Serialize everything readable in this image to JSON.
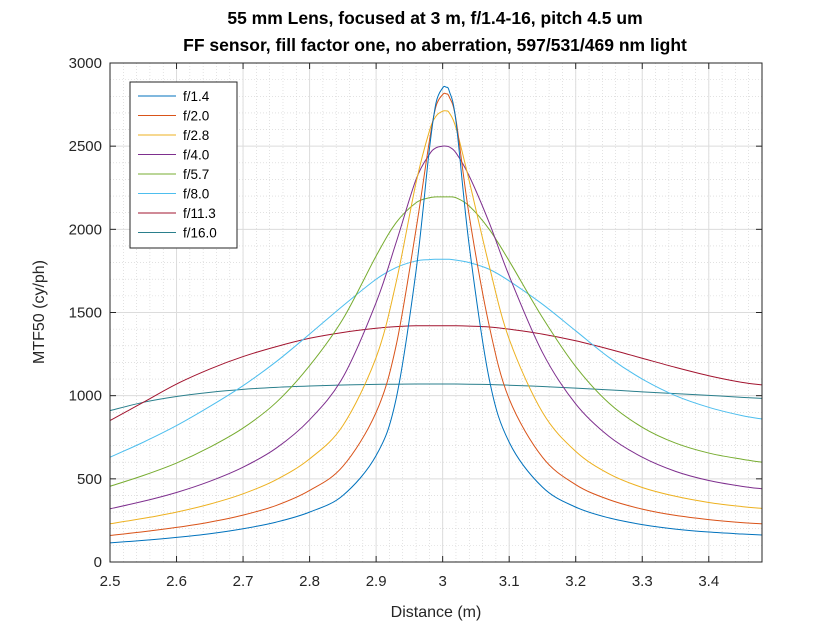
{
  "chart_data": {
    "type": "line",
    "title": "55 mm Lens, focused at 3 m, f/1.4-16, pitch 4.5 um",
    "subtitle": "FF sensor, fill factor one, no aberration, 597/531/469 nm light",
    "xlabel": "Distance (m)",
    "ylabel": "MTF50 (cy/ph)",
    "xlim": [
      2.5,
      3.48
    ],
    "ylim": [
      0,
      3000
    ],
    "x_ticks": [
      "2.5",
      "2.6",
      "2.7",
      "2.8",
      "2.9",
      "3",
      "3.1",
      "3.2",
      "3.3",
      "3.4"
    ],
    "x_tick_values": [
      2.5,
      2.6,
      2.7,
      2.8,
      2.9,
      3.0,
      3.1,
      3.2,
      3.3,
      3.4
    ],
    "y_ticks": [
      "0",
      "500",
      "1000",
      "1500",
      "2000",
      "2500",
      "3000"
    ],
    "y_tick_values": [
      0,
      500,
      1000,
      1500,
      2000,
      2500,
      3000
    ],
    "grid": true,
    "minor_grid": true,
    "legend_position": "top-left",
    "x": [
      2.5,
      2.55,
      2.6,
      2.65,
      2.7,
      2.75,
      2.8,
      2.85,
      2.9,
      2.93,
      2.96,
      2.98,
      2.99,
      3.0,
      3.005,
      3.01,
      3.02,
      3.04,
      3.07,
      3.1,
      3.15,
      3.2,
      3.25,
      3.3,
      3.35,
      3.4,
      3.45,
      3.48
    ],
    "series": [
      {
        "name": "f/1.4",
        "color": "#0072BD",
        "values": [
          115,
          130,
          148,
          170,
          200,
          240,
          300,
          400,
          640,
          980,
          1750,
          2480,
          2760,
          2850,
          2855,
          2830,
          2650,
          1900,
          1100,
          720,
          450,
          330,
          265,
          225,
          198,
          180,
          168,
          162
        ]
      },
      {
        "name": "f/2.0",
        "color": "#D95319",
        "values": [
          160,
          182,
          208,
          240,
          282,
          340,
          430,
          575,
          900,
          1300,
          2000,
          2530,
          2740,
          2810,
          2815,
          2795,
          2660,
          2080,
          1420,
          980,
          630,
          465,
          375,
          318,
          280,
          255,
          237,
          230
        ]
      },
      {
        "name": "f/2.8",
        "color": "#EDB120",
        "values": [
          230,
          262,
          300,
          348,
          410,
          495,
          620,
          820,
          1230,
          1680,
          2280,
          2590,
          2680,
          2710,
          2712,
          2700,
          2610,
          2290,
          1780,
          1340,
          900,
          665,
          530,
          448,
          395,
          358,
          333,
          322
        ]
      },
      {
        "name": "f/4.0",
        "color": "#7E2F8E",
        "values": [
          320,
          365,
          418,
          485,
          570,
          685,
          855,
          1110,
          1560,
          1920,
          2300,
          2450,
          2490,
          2500,
          2500,
          2495,
          2460,
          2320,
          2040,
          1720,
          1260,
          950,
          755,
          630,
          545,
          490,
          455,
          440
        ]
      },
      {
        "name": "f/5.7",
        "color": "#77AC30",
        "values": [
          455,
          520,
          595,
          690,
          805,
          960,
          1180,
          1460,
          1840,
          2040,
          2160,
          2190,
          2195,
          2195,
          2195,
          2195,
          2190,
          2140,
          2000,
          1810,
          1470,
          1175,
          955,
          810,
          715,
          655,
          618,
          600
        ]
      },
      {
        "name": "f/8.0",
        "color": "#4DBEEE",
        "values": [
          630,
          720,
          820,
          935,
          1060,
          1205,
          1370,
          1540,
          1700,
          1770,
          1810,
          1818,
          1820,
          1820,
          1820,
          1820,
          1815,
          1800,
          1760,
          1690,
          1550,
          1390,
          1230,
          1100,
          1000,
          930,
          880,
          860
        ]
      },
      {
        "name": "f/11.3",
        "color": "#A2142F",
        "values": [
          850,
          960,
          1070,
          1160,
          1235,
          1295,
          1345,
          1380,
          1405,
          1415,
          1420,
          1420,
          1420,
          1420,
          1420,
          1420,
          1420,
          1418,
          1413,
          1400,
          1370,
          1330,
          1280,
          1225,
          1170,
          1120,
          1080,
          1065
        ]
      },
      {
        "name": "f/16.0",
        "color": "#2A7F8C",
        "values": [
          910,
          960,
          995,
          1020,
          1038,
          1050,
          1058,
          1064,
          1068,
          1069,
          1070,
          1070,
          1070,
          1070,
          1070,
          1070,
          1070,
          1069,
          1067,
          1063,
          1055,
          1045,
          1035,
          1023,
          1012,
          1002,
          990,
          984
        ]
      }
    ]
  }
}
